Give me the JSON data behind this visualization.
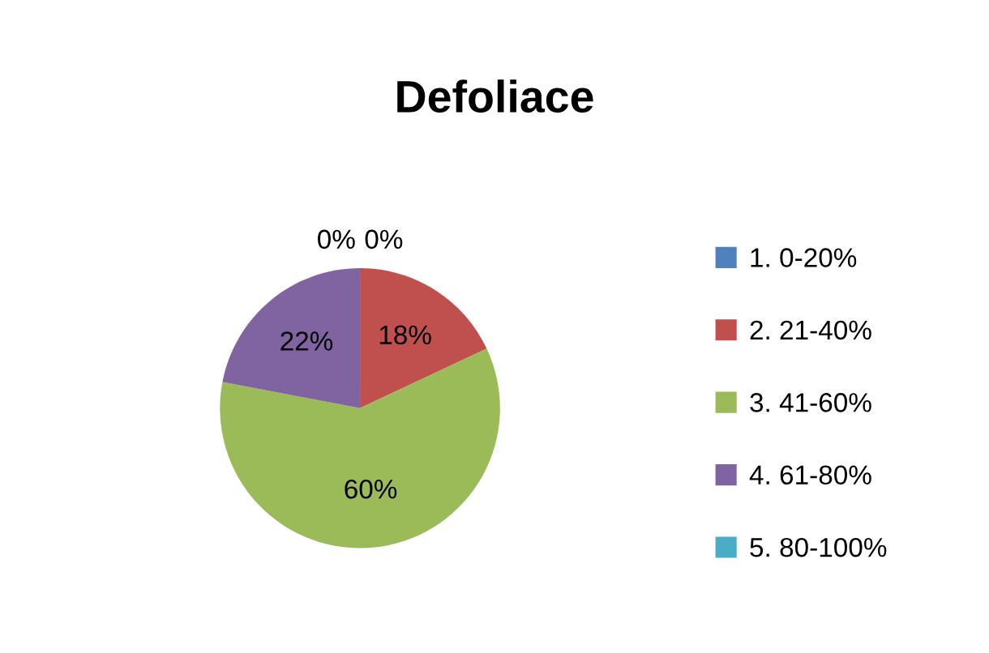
{
  "chart_data": {
    "type": "pie",
    "title": "Defoliace",
    "categories": [
      "1. 0-20%",
      "2. 21-40%",
      "3. 41-60%",
      "4. 61-80%",
      "5. 80-100%"
    ],
    "values": [
      0,
      18,
      60,
      22,
      0
    ],
    "colors": [
      "#4f81bd",
      "#c0504d",
      "#9bbb59",
      "#8064a2",
      "#4bacc6"
    ],
    "value_labels": [
      "0%",
      "18%",
      "60%",
      "22%",
      "0%"
    ],
    "legend": "right"
  }
}
